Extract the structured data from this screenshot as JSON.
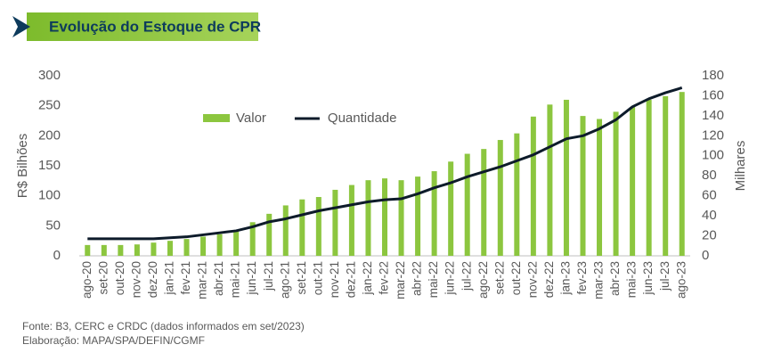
{
  "header": {
    "title": "Evolução do Estoque de CPR"
  },
  "chart_data": {
    "type": "bar-line",
    "categories": [
      "ago-20",
      "set-20",
      "out-20",
      "nov-20",
      "dez-20",
      "jan-21",
      "fev-21",
      "mar-21",
      "abr-21",
      "mai-21",
      "jun-21",
      "jul-21",
      "ago-21",
      "set-21",
      "out-21",
      "nov-21",
      "dez-21",
      "jan-22",
      "fev-22",
      "mar-22",
      "abr-22",
      "mai-22",
      "jun-22",
      "jul-22",
      "ago-22",
      "set-22",
      "out-22",
      "nov-22",
      "dez-22",
      "jan-23",
      "fev-23",
      "mar-23",
      "abr-23",
      "mai-23",
      "jun-23",
      "jul-23",
      "ago-23"
    ],
    "series": [
      {
        "name": "Valor",
        "type": "bar",
        "color": "#8cc63f",
        "values": [
          18,
          18,
          18,
          19,
          22,
          25,
          28,
          32,
          36,
          42,
          56,
          70,
          84,
          94,
          98,
          110,
          118,
          126,
          129,
          126,
          132,
          141,
          157,
          170,
          178,
          193,
          204,
          232,
          252,
          260,
          233,
          228,
          240,
          248,
          260,
          266,
          273
        ]
      },
      {
        "name": "Quantidade",
        "type": "line",
        "axis": "y2",
        "color": "#0d1b2a",
        "values": [
          17,
          17,
          17,
          17,
          17,
          18,
          19,
          21,
          23,
          25,
          29,
          34,
          37,
          41,
          45,
          48,
          51,
          54,
          56,
          57,
          62,
          68,
          73,
          79,
          84,
          89,
          95,
          101,
          109,
          117,
          120,
          127,
          136,
          149,
          157,
          163,
          168
        ]
      }
    ],
    "y_label": "R$ Bilhões",
    "y2_label": "Milhares",
    "ylim": [
      0,
      300
    ],
    "yticks": [
      0,
      50,
      100,
      150,
      200,
      250,
      300
    ],
    "y2lim": [
      0,
      180
    ],
    "y2ticks": [
      0,
      20,
      40,
      60,
      80,
      100,
      120,
      140,
      160,
      180
    ]
  },
  "footer": {
    "source": "Fonte: B3, CERC e CRDC (dados informados em set/2023)",
    "credit": "Elaboração: MAPA/SPA/DEFIN/CGMF"
  }
}
